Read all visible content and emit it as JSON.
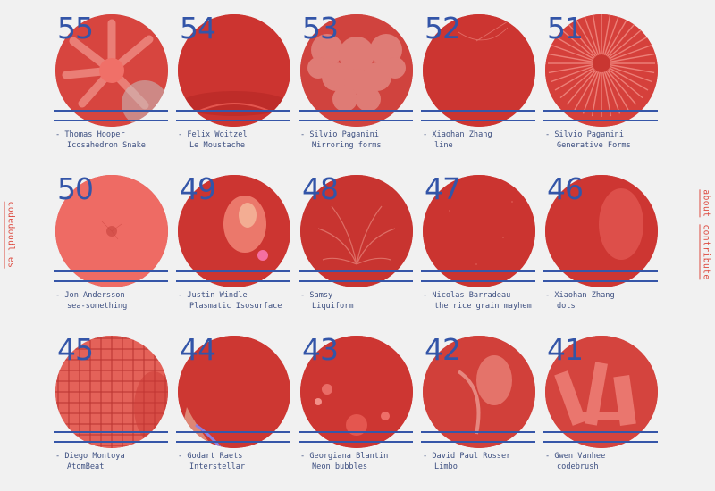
{
  "sidebar_left": {
    "site_name": "codedoodl.es"
  },
  "sidebar_right": {
    "about": "about",
    "contribute": "contribute"
  },
  "colors": {
    "background": "#f1f1f1",
    "circle_red": "#cf3833",
    "accent_blue": "#3355a8",
    "side_text": "#dd4b40"
  },
  "doodles": [
    {
      "number": "55",
      "author": "Thomas Hooper",
      "title": "Icosahedron Snake",
      "art": "icosahedron-snake"
    },
    {
      "number": "54",
      "author": "Felix Woitzel",
      "title": "Le Moustache",
      "art": "le-moustache"
    },
    {
      "number": "53",
      "author": "Silvio Paganini",
      "title": "Mirroring forms",
      "art": "mirroring-forms"
    },
    {
      "number": "52",
      "author": "Xiaohan Zhang",
      "title": "line",
      "art": "line"
    },
    {
      "number": "51",
      "author": "Silvio Paganini",
      "title": "Generative Forms",
      "art": "generative-forms"
    },
    {
      "number": "50",
      "author": "Jon Andersson",
      "title": "sea-something",
      "art": "sea-something"
    },
    {
      "number": "49",
      "author": "Justin Windle",
      "title": "Plasmatic Isosurface",
      "art": "plasmatic-isosurface"
    },
    {
      "number": "48",
      "author": "Samsy",
      "title": "Liquiform",
      "art": "liquiform"
    },
    {
      "number": "47",
      "author": "Nicolas Barradeau",
      "title": "the rice grain mayhem",
      "art": "rice-grain"
    },
    {
      "number": "46",
      "author": "Xiaohan Zhang",
      "title": "dots",
      "art": "dots"
    },
    {
      "number": "45",
      "author": "Diego Montoya",
      "title": "AtomBeat",
      "art": "atombeat"
    },
    {
      "number": "44",
      "author": "Godart Raets",
      "title": "Interstellar",
      "art": "interstellar"
    },
    {
      "number": "43",
      "author": "Georgiana Blantin",
      "title": "Neon bubbles",
      "art": "neon-bubbles"
    },
    {
      "number": "42",
      "author": "David Paul Rosser",
      "title": "Limbo",
      "art": "limbo"
    },
    {
      "number": "41",
      "author": "Gwen Vanhee",
      "title": "codebrush",
      "art": "codebrush"
    }
  ]
}
